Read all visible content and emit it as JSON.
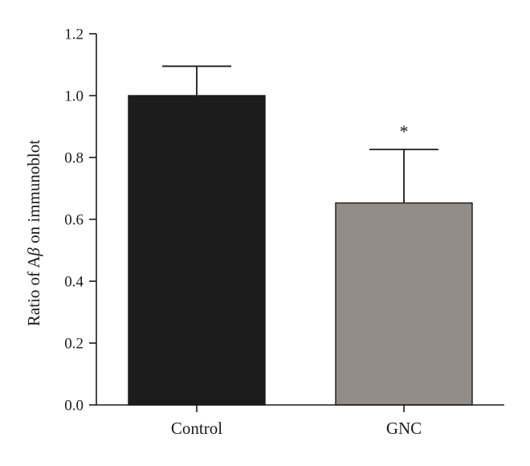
{
  "chart_data": {
    "type": "bar",
    "categories": [
      "Control",
      "GNC"
    ],
    "values": [
      1.0,
      0.653
    ],
    "error_upper": [
      1.095,
      0.826
    ],
    "colors": [
      "#1c1c1c",
      "#938c89"
    ],
    "ylabel_prefix": "Ratio of A",
    "ylabel_symbol": "β",
    "ylabel_suffix": " on immunoblot",
    "xlabel": "",
    "title": "",
    "ylim": [
      0,
      1.2
    ],
    "yticks": [
      0.0,
      0.2,
      0.4,
      0.6,
      0.8,
      1.0,
      1.2
    ],
    "ytick_labels": [
      "0.0",
      "0.2",
      "0.4",
      "0.6",
      "0.8",
      "1.0",
      "1.2"
    ],
    "annotations": [
      {
        "category": "GNC",
        "text": "*"
      }
    ],
    "grid": false,
    "legend": "none"
  }
}
